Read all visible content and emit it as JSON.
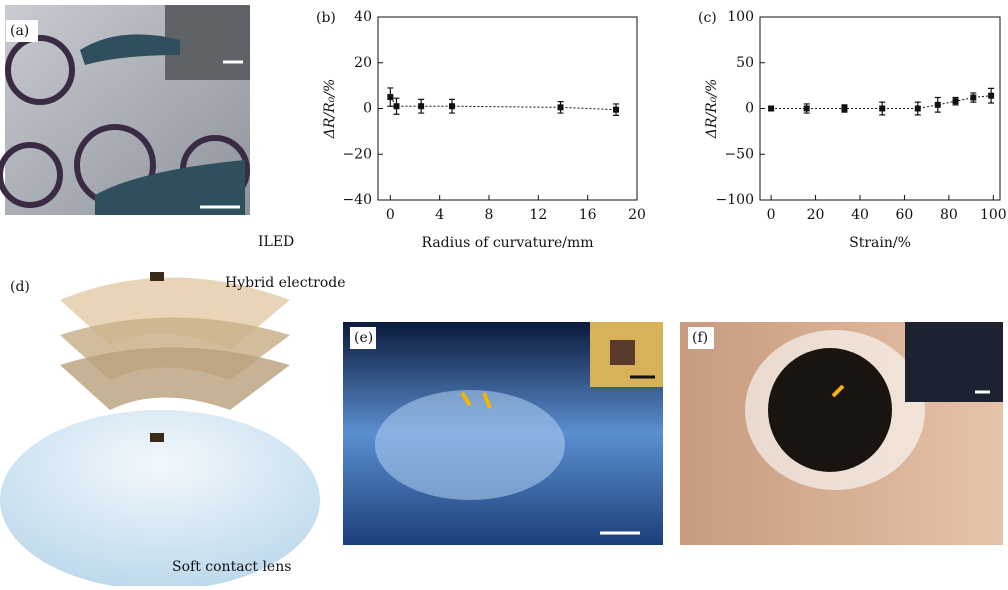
{
  "chart_data": [
    {
      "type": "scatter",
      "label": "(b)",
      "x_label": "Radius of curvature/mm",
      "y_label": "ΔR/R₀/%",
      "x": [
        0,
        0.5,
        2.5,
        5,
        13.8,
        18.3
      ],
      "values": [
        5,
        1,
        1,
        1,
        0.5,
        -0.5
      ],
      "errors": [
        4,
        3.5,
        3,
        3,
        2.5,
        2.5
      ],
      "color": "#111111",
      "xlim": [
        -1,
        20
      ],
      "xticks": [
        0,
        4,
        8,
        12,
        16,
        20
      ],
      "ylim": [
        -40,
        40
      ],
      "yticks": [
        {
          "value": -40,
          "label": "−40"
        },
        {
          "value": -20,
          "label": "−20"
        },
        0,
        20,
        40
      ]
    },
    {
      "type": "scatter",
      "label": "(c)",
      "x_label": "Strain/%",
      "y_label": "ΔR/R₀/%",
      "x": [
        0,
        16,
        33,
        50,
        66,
        75,
        83,
        91,
        99
      ],
      "values": [
        0,
        0,
        0,
        0,
        0,
        4,
        8,
        12,
        14
      ],
      "errors": [
        2,
        5,
        4,
        7,
        7,
        8,
        4,
        5,
        8
      ],
      "color": "#111111",
      "xlim": [
        -5,
        103
      ],
      "xticks": [
        0,
        20,
        40,
        60,
        80,
        100
      ],
      "ylim": [
        -100,
        100
      ],
      "yticks": [
        {
          "value": -100,
          "label": "−100"
        },
        {
          "value": -50,
          "label": "−50"
        },
        0,
        50,
        100
      ]
    }
  ],
  "panels": {
    "a": "(a)",
    "d": "(d)",
    "iled": "ILED",
    "hybrid": "Hybrid electrode",
    "lens": "Soft contact lens",
    "e": "(e)",
    "f": "(f)"
  }
}
